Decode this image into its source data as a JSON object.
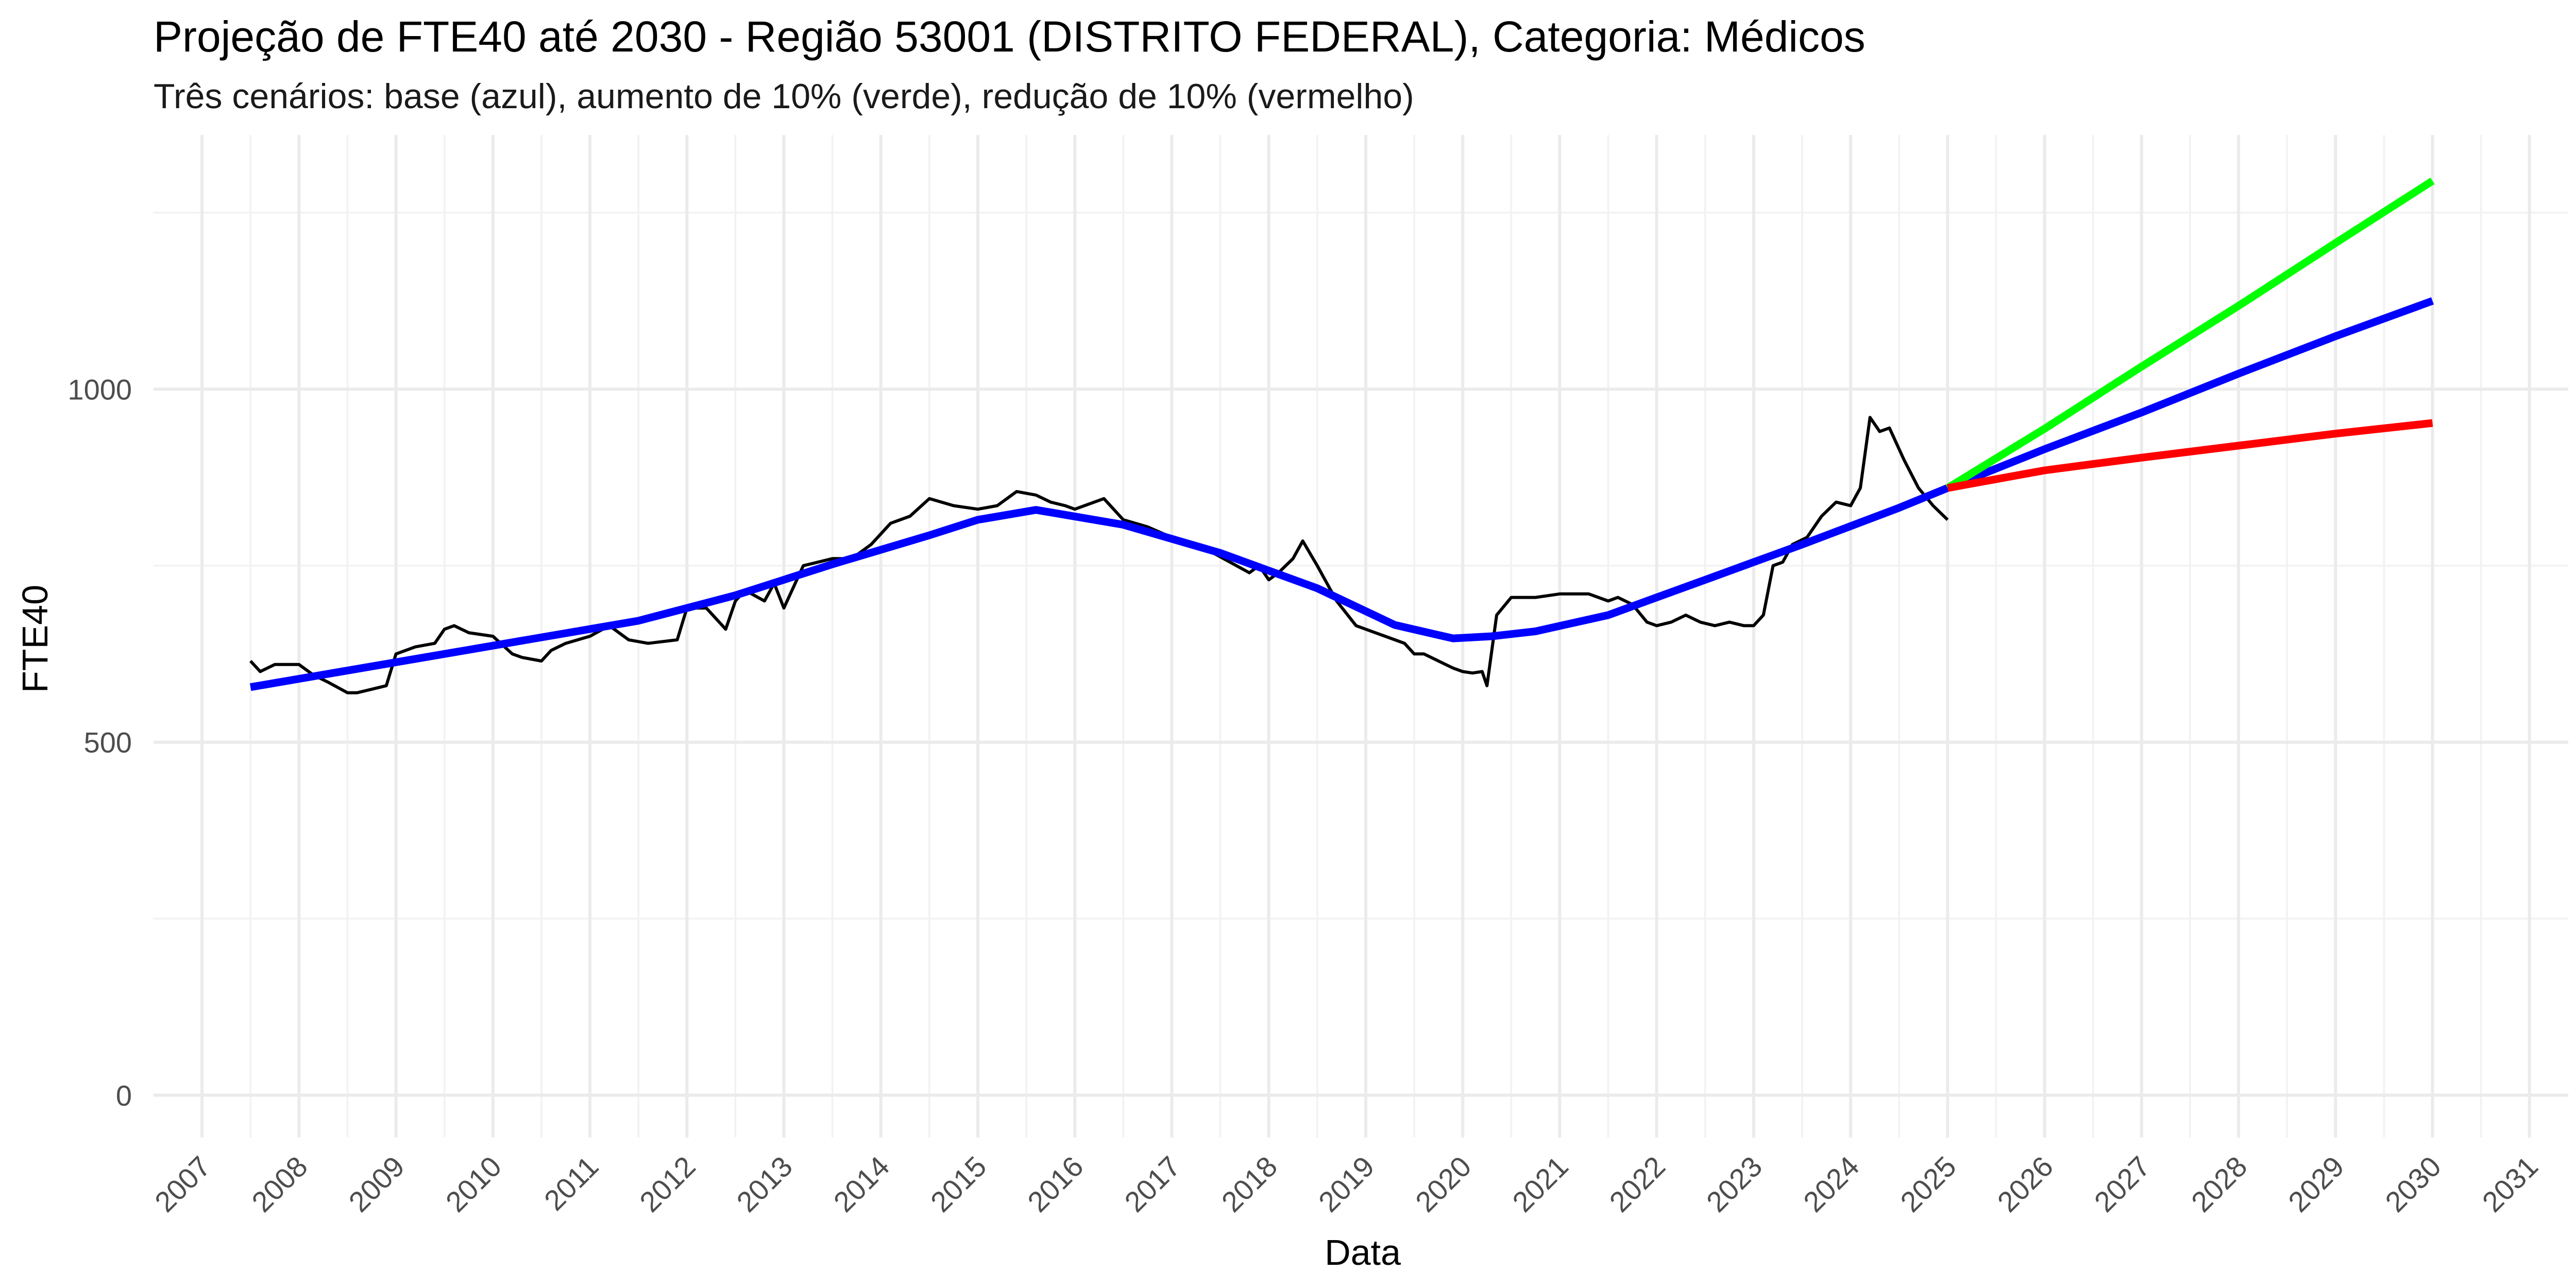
{
  "chart_data": {
    "type": "line",
    "title": "Projeção de FTE40 até 2030 - Região 53001 (DISTRITO FEDERAL), Categoria: Médicos",
    "subtitle": "Três cenários: base (azul), aumento de 10% (verde), redução de 10% (vermelho)",
    "xlabel": "Data",
    "ylabel": "FTE40",
    "xlim": [
      2006.5,
      2031.4
    ],
    "ylim": [
      -60,
      1360
    ],
    "x_ticks": [
      "2007",
      "2008",
      "2009",
      "2010",
      "2011",
      "2012",
      "2013",
      "2014",
      "2015",
      "2016",
      "2017",
      "2018",
      "2019",
      "2020",
      "2021",
      "2022",
      "2023",
      "2024",
      "2025",
      "2026",
      "2027",
      "2028",
      "2029",
      "2030",
      "2031"
    ],
    "y_ticks": [
      0,
      500,
      1000
    ],
    "y_minor_ticks": [
      250,
      750,
      1250
    ],
    "grid": true,
    "legend": "none",
    "series": [
      {
        "color": "#000000",
        "x": [
          2007.5,
          2007.6,
          2007.75,
          2008.0,
          2008.15,
          2008.3,
          2008.5,
          2008.6,
          2008.75,
          2008.9,
          2009.0,
          2009.2,
          2009.4,
          2009.5,
          2009.6,
          2009.75,
          2010.0,
          2010.2,
          2010.3,
          2010.5,
          2010.6,
          2010.75,
          2011.0,
          2011.2,
          2011.4,
          2011.6,
          2011.9,
          2012.0,
          2012.2,
          2012.4,
          2012.5,
          2012.6,
          2012.8,
          2012.9,
          2013.0,
          2013.2,
          2013.5,
          2013.7,
          2013.9,
          2014.1,
          2014.3,
          2014.5,
          2014.75,
          2015.0,
          2015.2,
          2015.4,
          2015.6,
          2015.75,
          2015.9,
          2016.0,
          2016.3,
          2016.5,
          2016.75,
          2017.0,
          2017.2,
          2017.4,
          2017.6,
          2017.8,
          2017.9,
          2018.0,
          2018.1,
          2018.25,
          2018.35,
          2018.5,
          2018.7,
          2018.9,
          2019.0,
          2019.2,
          2019.4,
          2019.5,
          2019.6,
          2019.75,
          2019.9,
          2020.0,
          2020.1,
          2020.2,
          2020.25,
          2020.35,
          2020.5,
          2020.75,
          2021.0,
          2021.3,
          2021.5,
          2021.6,
          2021.75,
          2021.9,
          2022.0,
          2022.15,
          2022.3,
          2022.45,
          2022.6,
          2022.75,
          2022.9,
          2023.0,
          2023.1,
          2023.2,
          2023.3,
          2023.4,
          2023.55,
          2023.7,
          2023.85,
          2024.0,
          2024.1,
          2024.2,
          2024.3,
          2024.4,
          2024.55,
          2024.7,
          2024.85,
          2025.0
        ],
        "y": [
          615,
          600,
          610,
          610,
          595,
          585,
          570,
          570,
          575,
          580,
          625,
          635,
          640,
          660,
          665,
          655,
          650,
          625,
          620,
          615,
          630,
          640,
          650,
          665,
          645,
          640,
          645,
          690,
          690,
          660,
          700,
          715,
          700,
          725,
          690,
          750,
          760,
          760,
          780,
          810,
          820,
          845,
          835,
          830,
          835,
          855,
          850,
          840,
          835,
          830,
          845,
          815,
          805,
          790,
          780,
          770,
          755,
          740,
          750,
          730,
          740,
          760,
          785,
          750,
          700,
          665,
          660,
          650,
          640,
          625,
          625,
          615,
          605,
          600,
          598,
          600,
          580,
          680,
          705,
          705,
          710,
          710,
          700,
          705,
          695,
          670,
          665,
          670,
          680,
          670,
          665,
          670,
          665,
          665,
          680,
          750,
          755,
          780,
          790,
          820,
          840,
          835,
          860,
          960,
          940,
          945,
          900,
          860,
          835,
          815
        ]
      },
      {
        "color": "#0000ff",
        "x": [
          2007.5,
          2011.5,
          2012.5,
          2013.5,
          2014.5,
          2015.0,
          2015.6,
          2016.5,
          2017.5,
          2018.5,
          2019.3,
          2019.9,
          2020.3,
          2020.75,
          2021.5,
          2022.0,
          2022.5,
          2023.0,
          2023.5,
          2024.0,
          2024.5,
          2025.0,
          2026.0,
          2027.0,
          2028.0,
          2029.0,
          2030.0
        ],
        "y": [
          578,
          672,
          708,
          752,
          793,
          815,
          829,
          808,
          768,
          718,
          666,
          647,
          650,
          657,
          680,
          705,
          730,
          755,
          780,
          806,
          832,
          860,
          915,
          967,
          1022,
          1075,
          1125
        ]
      },
      {
        "color": "#00ff00",
        "x": [
          2025.0,
          2026.0,
          2027.0,
          2028.0,
          2029.0,
          2030.0
        ],
        "y": [
          860,
          944,
          1032,
          1118,
          1207,
          1295
        ]
      },
      {
        "color": "#ff0000",
        "x": [
          2025.0,
          2026.0,
          2027.0,
          2028.0,
          2029.0,
          2030.0
        ],
        "y": [
          860,
          885,
          903,
          920,
          937,
          952
        ]
      }
    ]
  }
}
